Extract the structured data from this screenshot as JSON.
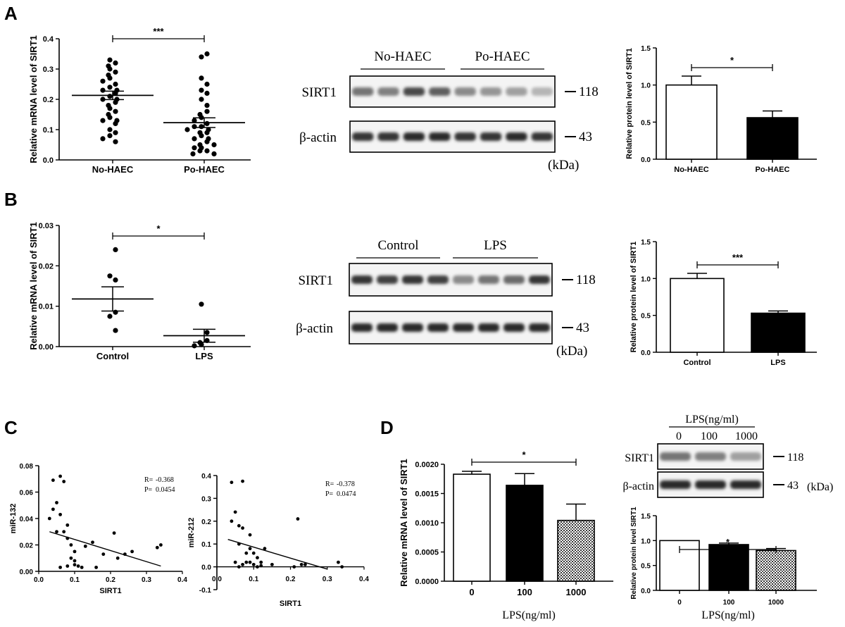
{
  "panels": {
    "A": {
      "letter": "A"
    },
    "B": {
      "letter": "B"
    },
    "C": {
      "letter": "C"
    },
    "D": {
      "letter": "D"
    }
  },
  "blots": {
    "A": {
      "groups": [
        "No-HAEC",
        "Po-HAEC"
      ],
      "protein_label": "SIRT1",
      "loading_label": "β-actin",
      "protein_kda": "118",
      "loading_kda": "43",
      "unit": "(kDa)",
      "protein_band_intensity": [
        0.55,
        0.5,
        0.75,
        0.65,
        0.45,
        0.4,
        0.35,
        0.25
      ],
      "loading_band_intensity": [
        0.85,
        0.85,
        0.9,
        0.9,
        0.85,
        0.85,
        0.9,
        0.85
      ]
    },
    "B": {
      "groups": [
        "Control",
        "LPS"
      ],
      "protein_label": "SIRT1",
      "loading_label": "β-actin",
      "protein_kda": "118",
      "loading_kda": "43",
      "unit": "(kDa)",
      "protein_band_intensity": [
        0.85,
        0.8,
        0.85,
        0.8,
        0.45,
        0.55,
        0.6,
        0.85
      ],
      "loading_band_intensity": [
        0.9,
        0.9,
        0.9,
        0.9,
        0.9,
        0.9,
        0.9,
        0.9
      ]
    },
    "D": {
      "header": "LPS(ng/ml)",
      "lanes": [
        "0",
        "100",
        "1000"
      ],
      "protein_label": "SIRT1",
      "loading_label": "β-actin",
      "protein_kda": "118",
      "loading_kda": "43",
      "unit": "(kDa)",
      "protein_band_intensity": [
        0.55,
        0.5,
        0.35
      ],
      "loading_band_intensity": [
        0.9,
        0.9,
        0.9
      ]
    }
  },
  "chart_data": [
    {
      "id": "A-mrna",
      "type": "scatter",
      "ylabel": "Relative mRNA level of SIRT1",
      "categories": [
        "No-HAEC",
        "Po-HAEC"
      ],
      "ylim": [
        0,
        0.4
      ],
      "yticks": [
        "0.0",
        "0.1",
        "0.2",
        "0.3",
        "0.4"
      ],
      "means": [
        0.213,
        0.123
      ],
      "sem": [
        0.014,
        0.016
      ],
      "significance": "***",
      "points": [
        [
          0.33,
          0.32,
          0.31,
          0.3,
          0.29,
          0.28,
          0.27,
          0.26,
          0.25,
          0.24,
          0.23,
          0.23,
          0.22,
          0.21,
          0.2,
          0.2,
          0.19,
          0.18,
          0.17,
          0.16,
          0.15,
          0.14,
          0.13,
          0.12,
          0.1,
          0.09,
          0.08,
          0.07,
          0.06,
          0.13
        ],
        [
          0.35,
          0.34,
          0.27,
          0.25,
          0.23,
          0.22,
          0.2,
          0.18,
          0.16,
          0.15,
          0.14,
          0.13,
          0.12,
          0.11,
          0.1,
          0.1,
          0.09,
          0.09,
          0.08,
          0.07,
          0.07,
          0.06,
          0.05,
          0.05,
          0.04,
          0.04,
          0.03,
          0.03,
          0.02,
          0.02,
          0.11
        ]
      ]
    },
    {
      "id": "A-protein",
      "type": "bar",
      "ylabel": "Relative protein level of SIRT1",
      "categories": [
        "No-HAEC",
        "Po-HAEC"
      ],
      "values": [
        1.0,
        0.56
      ],
      "errors": [
        0.12,
        0.09
      ],
      "fills": [
        "#ffffff",
        "#000000"
      ],
      "ylim": [
        0,
        1.5
      ],
      "yticks": [
        "0.0",
        "0.5",
        "1.0",
        "1.5"
      ],
      "significance": "*"
    },
    {
      "id": "B-mrna",
      "type": "scatter",
      "ylabel": "Relative mRNA level of SIRT1",
      "categories": [
        "Control",
        "LPS"
      ],
      "ylim": [
        0,
        0.03
      ],
      "yticks": [
        "0.00",
        "0.01",
        "0.02",
        "0.03"
      ],
      "means": [
        0.0118,
        0.0027
      ],
      "sem": [
        0.003,
        0.0016
      ],
      "significance": "*",
      "points": [
        [
          0.024,
          0.0175,
          0.0165,
          0.0085,
          0.0075,
          0.004
        ],
        [
          0.0105,
          0.0035,
          0.0015,
          0.001,
          0.0005,
          0.0002
        ]
      ]
    },
    {
      "id": "B-protein",
      "type": "bar",
      "ylabel": "Relative protein level of SIRT1",
      "categories": [
        "Control",
        "LPS"
      ],
      "values": [
        1.0,
        0.53
      ],
      "errors": [
        0.07,
        0.03
      ],
      "fills": [
        "#ffffff",
        "#000000"
      ],
      "ylim": [
        0,
        1.5
      ],
      "yticks": [
        "0.0",
        "0.5",
        "1.0",
        "1.5"
      ],
      "significance": "***"
    },
    {
      "id": "C-mir132",
      "type": "scatter",
      "xlabel": "SIRT1",
      "ylabel": "miR-132",
      "xlim": [
        0,
        0.4
      ],
      "ylim": [
        0,
        0.08
      ],
      "xticks": [
        "0.0",
        "0.1",
        "0.2",
        "0.3",
        "0.4"
      ],
      "yticks": [
        "0.00",
        "0.02",
        "0.04",
        "0.06",
        "0.08"
      ],
      "annotation": {
        "r_label": "R=",
        "r_value": "-0.368",
        "p_label": "P=",
        "p_value": "0.0454"
      },
      "fit_line": [
        [
          0.03,
          0.03
        ],
        [
          0.34,
          0.004
        ]
      ],
      "x": [
        0.04,
        0.05,
        0.06,
        0.07,
        0.04,
        0.05,
        0.03,
        0.06,
        0.08,
        0.07,
        0.08,
        0.09,
        0.1,
        0.09,
        0.1,
        0.12,
        0.13,
        0.15,
        0.16,
        0.18,
        0.21,
        0.22,
        0.24,
        0.26,
        0.33,
        0.34,
        0.08,
        0.06,
        0.11,
        0.1
      ],
      "y": [
        0.069,
        0.052,
        0.072,
        0.068,
        0.047,
        0.03,
        0.04,
        0.043,
        0.035,
        0.03,
        0.025,
        0.02,
        0.015,
        0.01,
        0.005,
        0.003,
        0.019,
        0.022,
        0.003,
        0.013,
        0.029,
        0.01,
        0.013,
        0.015,
        0.018,
        0.02,
        0.004,
        0.003,
        0.004,
        0.008
      ]
    },
    {
      "id": "C-mir212",
      "type": "scatter",
      "xlabel": "SIRT1",
      "ylabel": "miR-212",
      "xlim": [
        0,
        0.4
      ],
      "ylim": [
        -0.1,
        0.4
      ],
      "xticks": [
        "0.0",
        "0.1",
        "0.2",
        "0.3",
        "0.4"
      ],
      "yticks": [
        "-0.1",
        "0.0",
        "0.1",
        "0.2",
        "0.3",
        "0.4"
      ],
      "annotation": {
        "r_label": "R=",
        "r_value": "-0.378",
        "p_label": "P=",
        "p_value": "0.0474"
      },
      "fit_line": [
        [
          0.03,
          0.12
        ],
        [
          0.3,
          -0.01
        ]
      ],
      "x": [
        0.04,
        0.07,
        0.05,
        0.04,
        0.06,
        0.07,
        0.06,
        0.08,
        0.09,
        0.09,
        0.1,
        0.11,
        0.08,
        0.07,
        0.06,
        0.05,
        0.1,
        0.11,
        0.12,
        0.13,
        0.15,
        0.21,
        0.22,
        0.23,
        0.24,
        0.33,
        0.34,
        0.09,
        0.12
      ],
      "y": [
        0.37,
        0.375,
        0.24,
        0.2,
        0.18,
        0.17,
        0.1,
        0.06,
        0.14,
        0.08,
        0.06,
        0.04,
        0.02,
        0.01,
        0.0,
        0.02,
        0.01,
        0.0,
        0.02,
        0.08,
        0.01,
        0.0,
        0.21,
        0.01,
        0.01,
        0.02,
        0.0,
        0.02,
        0.005
      ]
    },
    {
      "id": "D-mrna",
      "type": "bar",
      "xlabel": "LPS(ng/ml)",
      "ylabel": "Relative mRNA level of SIRT1",
      "categories": [
        "0",
        "100",
        "1000"
      ],
      "values": [
        0.00183,
        0.00164,
        0.00104
      ],
      "errors": [
        5e-05,
        0.0002,
        0.00028
      ],
      "fills": [
        "#ffffff",
        "#000000",
        "pattern"
      ],
      "ylim": [
        0,
        0.002
      ],
      "yticks": [
        "0.0000",
        "0.0005",
        "0.0010",
        "0.0015",
        "0.0020"
      ],
      "significance": "*"
    },
    {
      "id": "D-protein",
      "type": "bar",
      "xlabel": "LPS(ng/ml)",
      "ylabel": "Relative protein level SIRT1",
      "categories": [
        "0",
        "100",
        "1000"
      ],
      "values": [
        1.0,
        0.92,
        0.8
      ],
      "errors": [
        0.0,
        0.03,
        0.04
      ],
      "fills": [
        "#ffffff",
        "#000000",
        "pattern"
      ],
      "ylim": [
        0,
        1.5
      ],
      "yticks": [
        "0.0",
        "0.5",
        "1.0",
        "1.5"
      ],
      "significance": "*"
    }
  ]
}
